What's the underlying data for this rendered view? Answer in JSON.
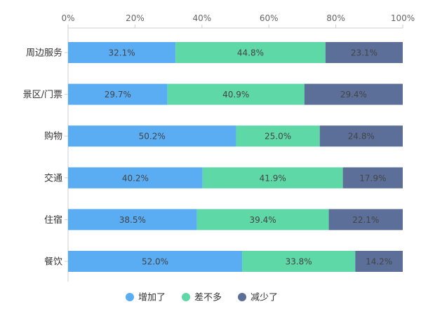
{
  "chart_data": {
    "type": "bar",
    "orientation": "horizontal",
    "stacked": true,
    "percent_scale": true,
    "categories": [
      "周边服务",
      "景区/门票",
      "购物",
      "交通",
      "住宿",
      "餐饮"
    ],
    "series": [
      {
        "name": "增加了",
        "color": "#5aacf3",
        "values": [
          32.1,
          29.7,
          50.2,
          40.2,
          38.5,
          52.0
        ],
        "labels": [
          "32.1%",
          "29.7%",
          "50.2%",
          "40.2%",
          "38.5%",
          "52.0%"
        ]
      },
      {
        "name": "差不多",
        "color": "#5fd8a8",
        "values": [
          44.8,
          40.9,
          25.0,
          41.9,
          39.4,
          33.8
        ],
        "labels": [
          "44.8%",
          "40.9%",
          "25.0%",
          "41.9%",
          "39.4%",
          "33.8%"
        ]
      },
      {
        "name": "减少了",
        "color": "#5c6f99",
        "values": [
          23.1,
          29.4,
          24.8,
          17.9,
          22.1,
          14.2
        ],
        "labels": [
          "23.1%",
          "29.4%",
          "24.8%",
          "17.9%",
          "22.1%",
          "14.2%"
        ]
      }
    ],
    "x_ticks": [
      "0%",
      "20%",
      "40%",
      "60%",
      "80%",
      "100%"
    ],
    "xlim": [
      0,
      100
    ],
    "x_axis_position": "top",
    "grid": false,
    "legend_position": "bottom"
  }
}
